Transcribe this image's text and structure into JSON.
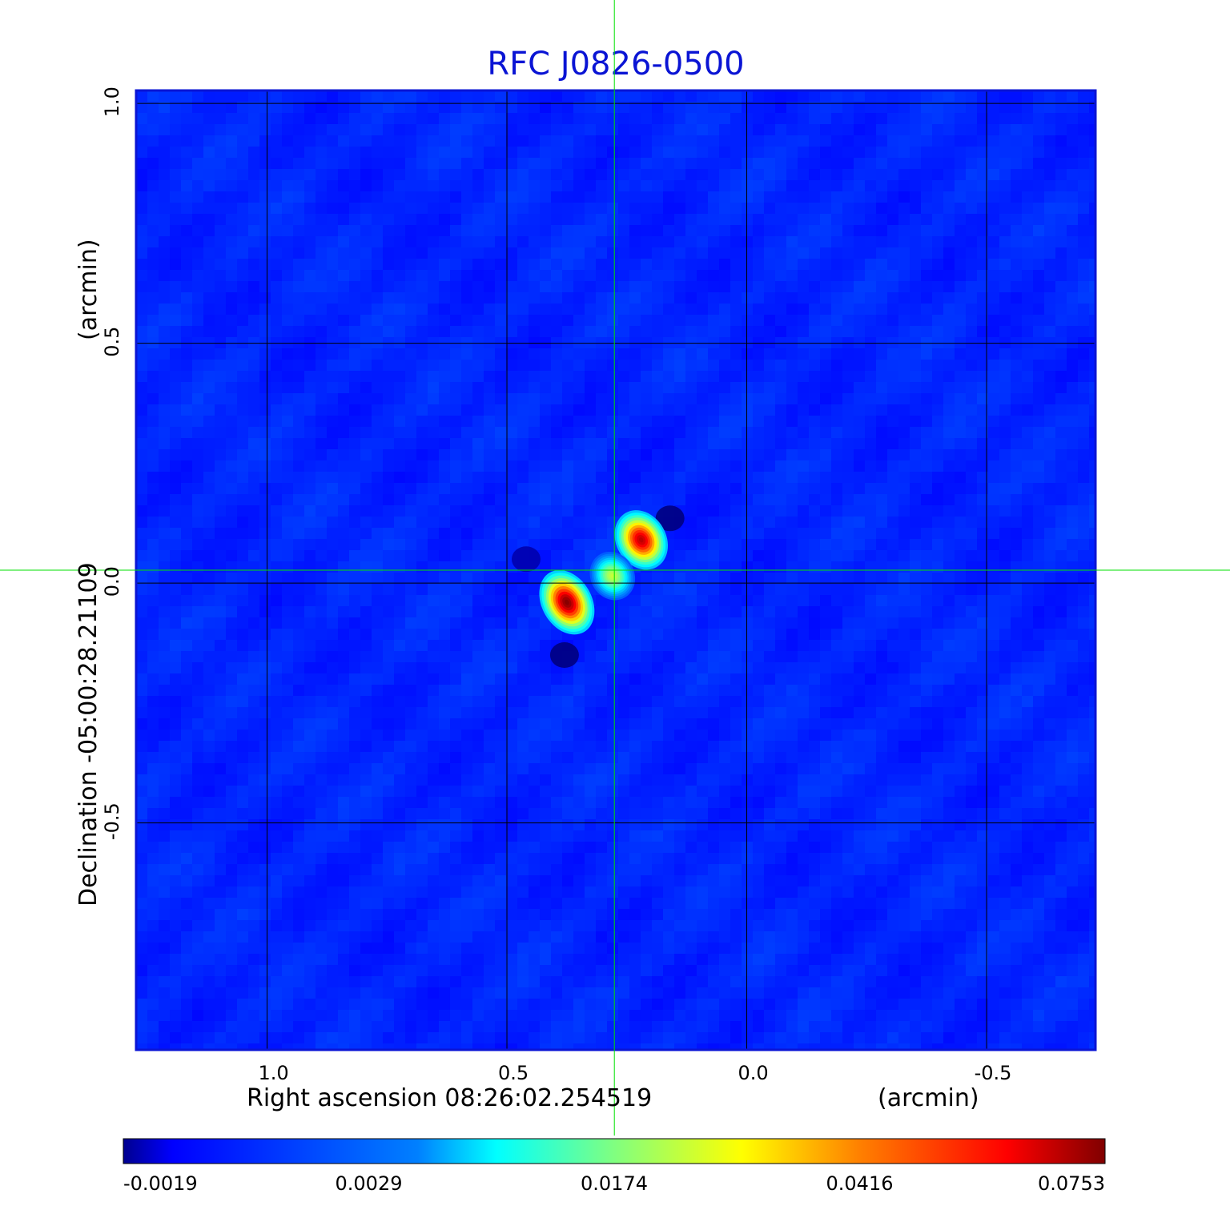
{
  "chart_data": {
    "type": "heatmap",
    "title": "RFC J0826-0500",
    "xlabel": "Right ascension  08:26:02.254519",
    "xunit": "(arcmin)",
    "ylabel": "Declination  -05:00:28.21109",
    "yunit": "(arcmin)",
    "x_ticks": [
      1.0,
      0.5,
      0.0,
      -0.5
    ],
    "x_tick_labels": [
      "1.0",
      "0.5",
      "0.0",
      "-0.5"
    ],
    "y_ticks": [
      1.0,
      0.5,
      0.0,
      -0.5
    ],
    "y_tick_labels": [
      "1.0",
      "0.5",
      "0.0",
      "-0.5"
    ],
    "xlim": [
      1.273,
      -0.727
    ],
    "ylim": [
      -0.973,
      1.027
    ],
    "x_reversed": true,
    "grid": true,
    "crosshair": {
      "x": 0.276,
      "y": 0.027,
      "color": "#00e000"
    },
    "colormap": "jet",
    "colorbar": {
      "ticks": [
        "-0.0019",
        "0.0029",
        "0.0174",
        "0.0416",
        "0.0753"
      ],
      "position": "bottom"
    },
    "value_range": [
      -0.0019,
      0.0753
    ],
    "background_level": 0.0,
    "sources": [
      {
        "name": "",
        "x": 0.375,
        "y": -0.04,
        "peak": 0.0753,
        "sigma_x": 0.04,
        "sigma_y": 0.055
      },
      {
        "name": "",
        "x": 0.22,
        "y": 0.09,
        "peak": 0.068,
        "sigma_x": 0.04,
        "sigma_y": 0.05
      },
      {
        "name": "",
        "x": 0.28,
        "y": 0.015,
        "peak": 0.026,
        "sigma_x": 0.035,
        "sigma_y": 0.04
      }
    ],
    "negative_sidelobes": [
      {
        "x": 0.16,
        "y": 0.135,
        "value": -0.0019
      },
      {
        "x": 0.38,
        "y": -0.15,
        "value": -0.0019
      },
      {
        "x": 0.46,
        "y": 0.05,
        "value": -0.0012
      }
    ],
    "colors": {
      "title": "#0a14d4",
      "frame": "#0a14d4",
      "grid": "#000000",
      "crosshair": "#00e000"
    }
  }
}
